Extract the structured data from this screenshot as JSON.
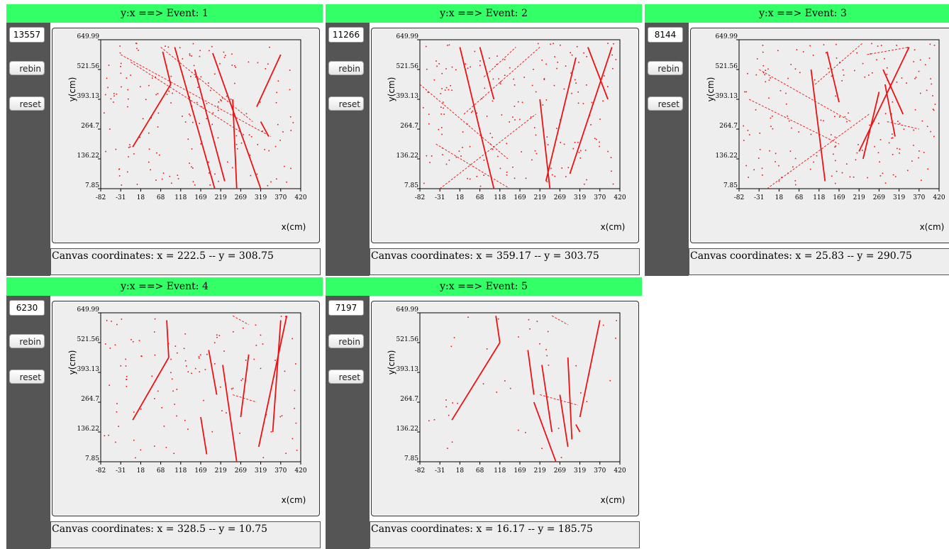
{
  "axes": {
    "x_label": "x(cm)",
    "y_label": "y(cm)",
    "x_ticks": [
      "-82",
      "-31",
      "18",
      "68",
      "118",
      "169",
      "219",
      "269",
      "319",
      "370",
      "420"
    ],
    "y_ticks": [
      "649.99",
      "521.56",
      "393.13",
      "264.7",
      "136.22",
      "7.85"
    ]
  },
  "buttons": {
    "rebin": "rebin",
    "reset": "reset"
  },
  "colors": {
    "title_bar": "#33ff66",
    "sidebar": "#555555",
    "hits": "#ee1111",
    "canvas": "#eeeeee"
  },
  "panels": [
    {
      "title": "y:x ==> Event: 1",
      "count": "13557",
      "coords": "Canvas coordinates: x = 222.5 -- y = 308.75"
    },
    {
      "title": "y:x ==> Event: 2",
      "count": "11266",
      "coords": "Canvas coordinates: x = 359.17 -- y = 303.75"
    },
    {
      "title": "y:x ==> Event: 3",
      "count": "8144",
      "coords": "Canvas coordinates: x = 25.83 -- y = 290.75"
    },
    {
      "title": "y:x ==> Event: 4",
      "count": "6230",
      "coords": "Canvas coordinates: x = 328.5 -- y = 10.75"
    },
    {
      "title": "y:x ==> Event: 5",
      "count": "7197",
      "coords": "Canvas coordinates: x = 16.17 -- y = 185.75"
    }
  ]
}
